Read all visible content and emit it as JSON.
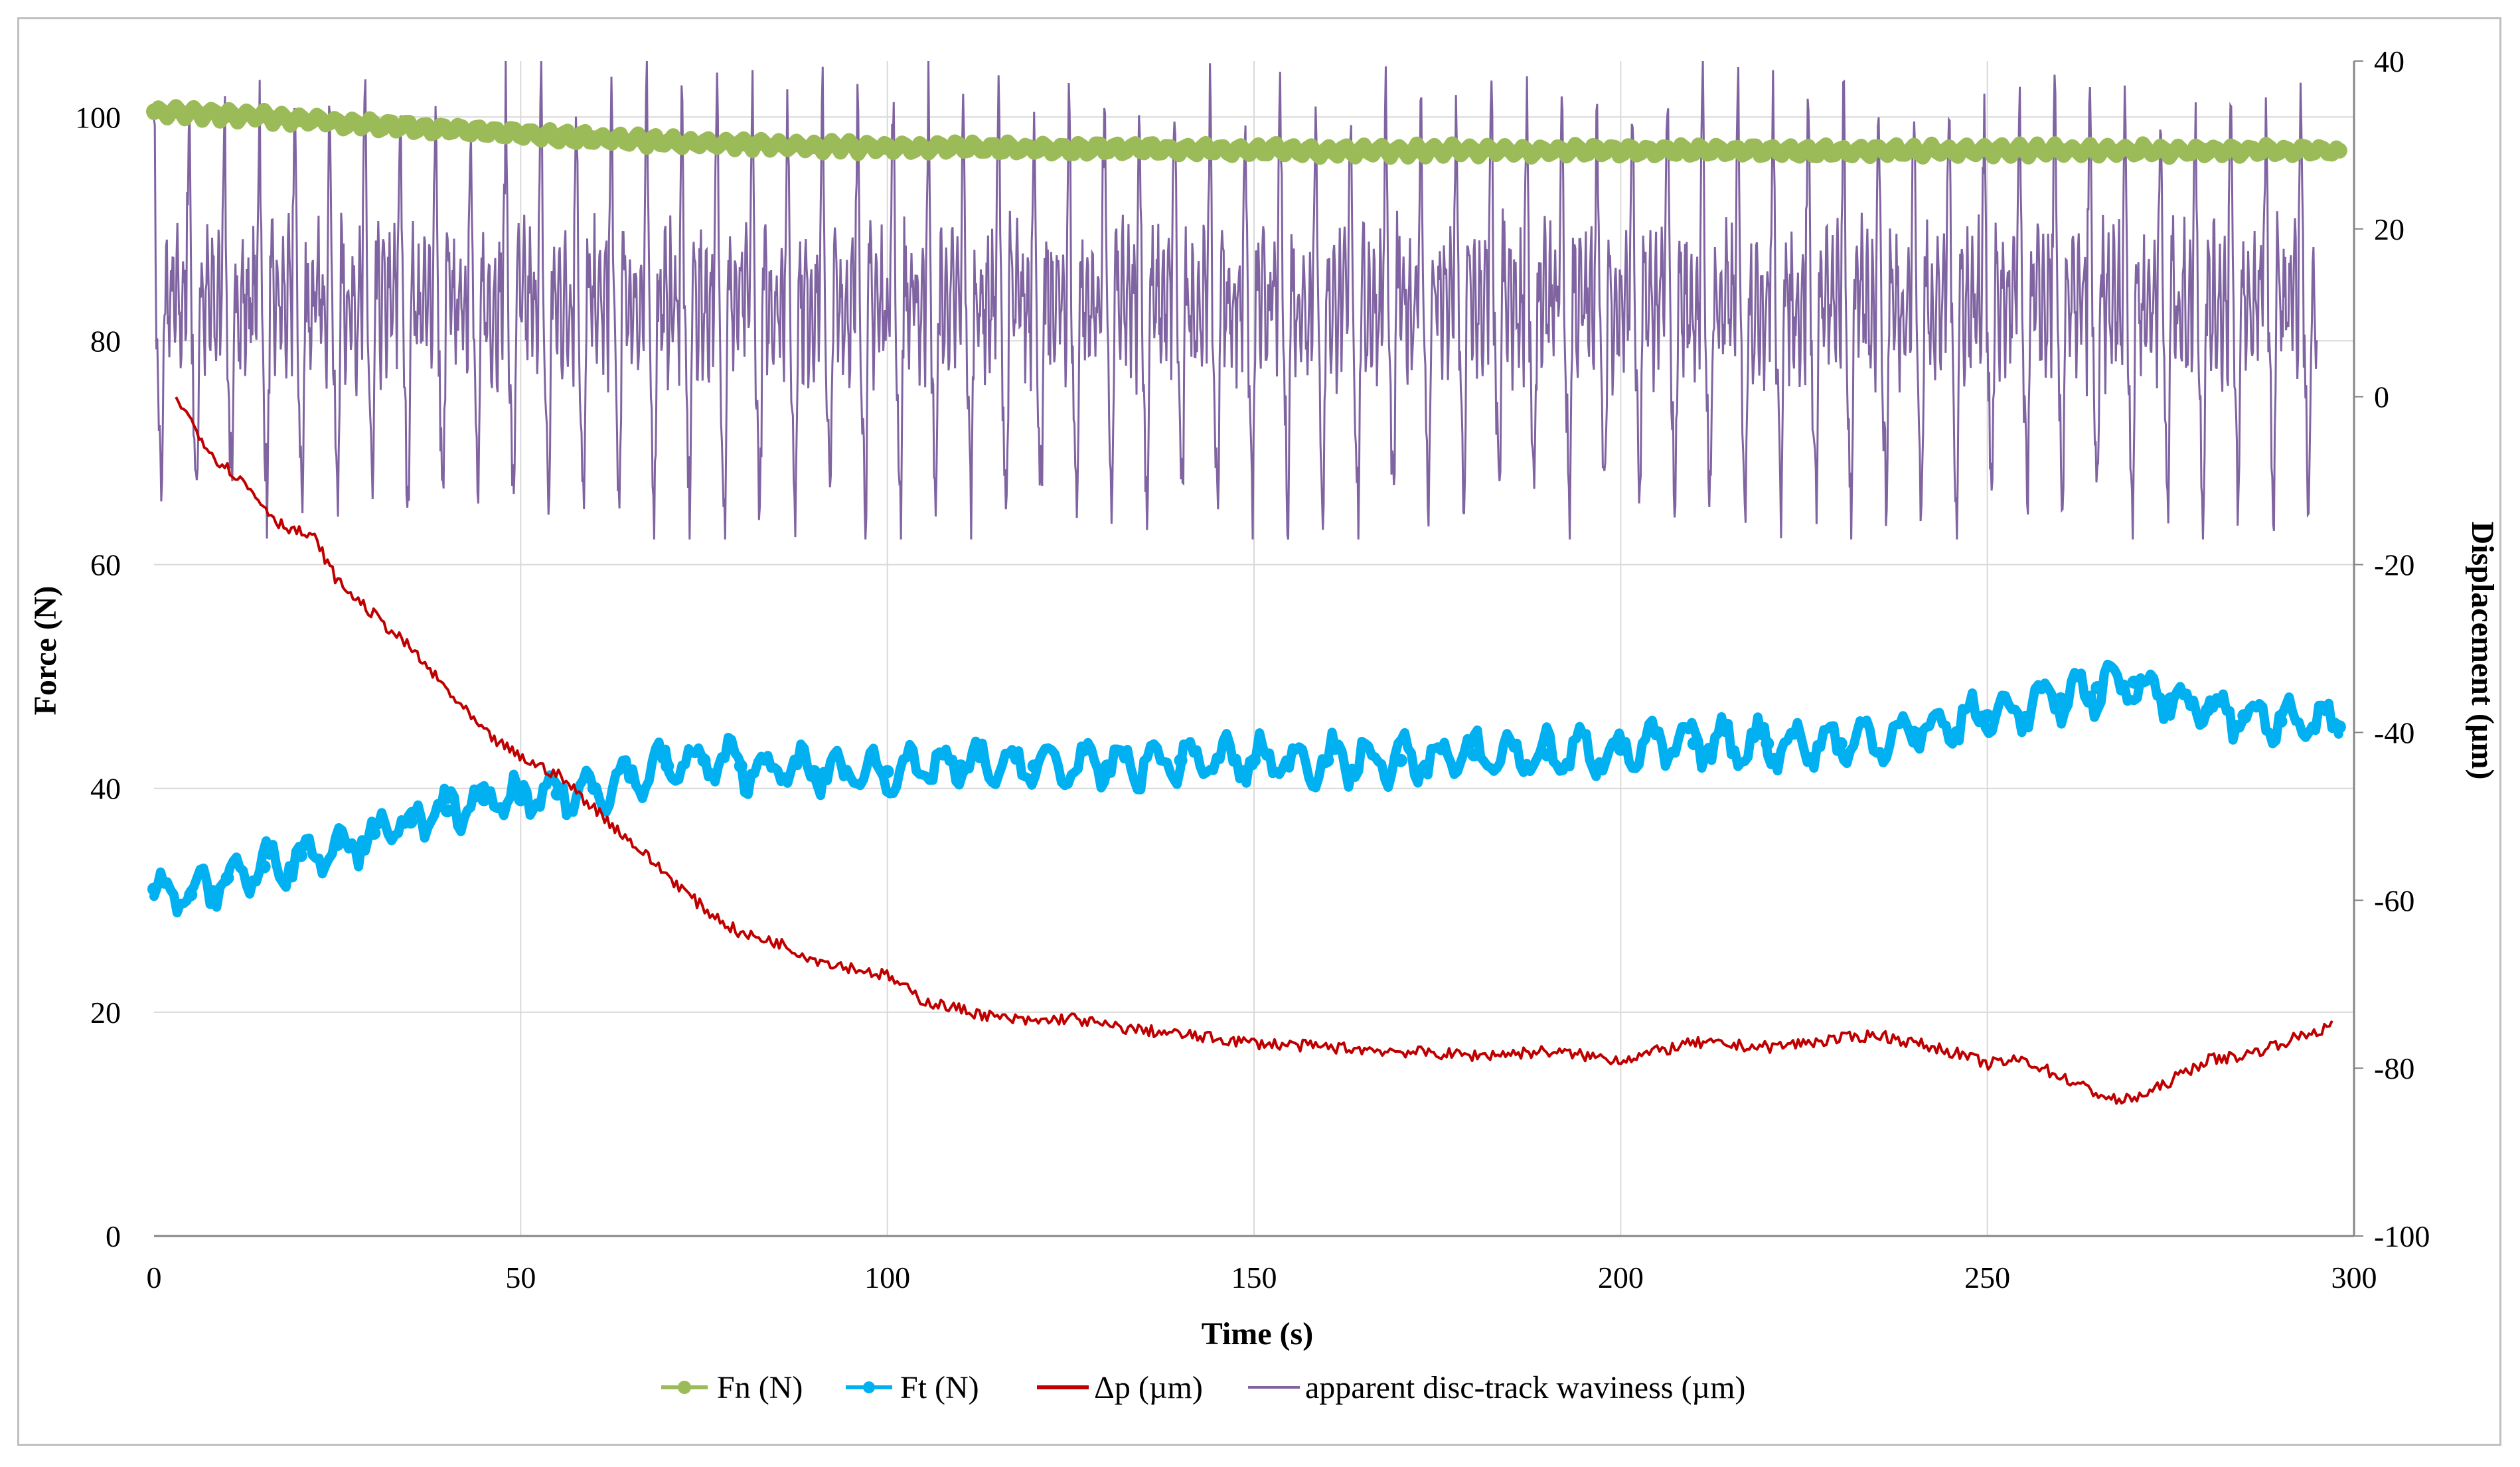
{
  "chart_data": {
    "type": "line",
    "title": "",
    "xlabel": "Time (s)",
    "ylabel": "Force (N)",
    "y2label": "Displacement (µm)",
    "xlim": [
      0,
      300
    ],
    "ylim": [
      0,
      105
    ],
    "y2lim": [
      -100,
      40
    ],
    "x_ticks": [
      "0",
      "50",
      "100",
      "150",
      "200",
      "250",
      "300"
    ],
    "y_ticks": [
      "0",
      "20",
      "40",
      "60",
      "80",
      "100"
    ],
    "y2_ticks": [
      "-100",
      "-80",
      "-60",
      "-40",
      "-20",
      "0",
      "20",
      "40"
    ],
    "grid": true,
    "legend_position": "bottom",
    "series": [
      {
        "name": "Fn (N)",
        "axis": "left",
        "color": "#9bbb59",
        "marker": "circle",
        "x": [
          0,
          10,
          20,
          30,
          40,
          50,
          60,
          70,
          80,
          90,
          100,
          120,
          140,
          160,
          180,
          200,
          220,
          240,
          260,
          280,
          298
        ],
        "values": [
          100.5,
          100.2,
          99.8,
          99.3,
          98.9,
          98.5,
          98.1,
          97.8,
          97.6,
          97.4,
          97.3,
          97.2,
          97.1,
          97.0,
          97.0,
          97.0,
          97.0,
          97.0,
          97.0,
          97.0,
          97.0
        ]
      },
      {
        "name": "Ft (N)",
        "axis": "left",
        "color": "#00b0f0",
        "marker": "circle",
        "x": [
          0,
          5,
          10,
          15,
          20,
          25,
          30,
          35,
          40,
          45,
          50,
          55,
          60,
          65,
          70,
          75,
          80,
          90,
          100,
          110,
          120,
          130,
          140,
          150,
          160,
          170,
          180,
          190,
          200,
          210,
          220,
          230,
          240,
          250,
          260,
          265,
          270,
          275,
          280,
          285,
          290,
          298
        ],
        "values": [
          31,
          30.5,
          32,
          33,
          34,
          35,
          36,
          37,
          38,
          39,
          39,
          39.5,
          40,
          41,
          42,
          42.5,
          42,
          41.5,
          41.5,
          42,
          42,
          42,
          42.5,
          42.5,
          42.5,
          42.5,
          43,
          43,
          43.5,
          44,
          44,
          44,
          45,
          46.5,
          48,
          49,
          49.5,
          48,
          47,
          46.5,
          46,
          45.5
        ]
      },
      {
        "name": "Δp (µm)",
        "axis": "right",
        "color": "#c00000",
        "marker": "none",
        "x": [
          3,
          8,
          12,
          17,
          22,
          25,
          30,
          35,
          40,
          45,
          50,
          55,
          60,
          65,
          70,
          75,
          80,
          85,
          90,
          95,
          100,
          105,
          110,
          115,
          120,
          125,
          130,
          140,
          150,
          160,
          170,
          180,
          190,
          200,
          210,
          220,
          230,
          235,
          240,
          245,
          250,
          255,
          260,
          265,
          268,
          272,
          276,
          280,
          285,
          290,
          297
        ],
        "values": [
          0,
          -7,
          -10,
          -15,
          -17,
          -22,
          -26,
          -30,
          -35,
          -40,
          -43,
          -45,
          -49,
          -53,
          -57,
          -61,
          -64,
          -65,
          -67,
          -68,
          -69,
          -72,
          -73,
          -74,
          -74.5,
          -74,
          -75,
          -76,
          -77,
          -77.5,
          -78,
          -78.5,
          -78,
          -79,
          -77,
          -77.5,
          -76.5,
          -76,
          -77,
          -78,
          -79.5,
          -79,
          -81,
          -83,
          -84,
          -83,
          -81,
          -79,
          -78.5,
          -77,
          -75
        ]
      },
      {
        "name": "apparent disc-track waviness (µm)",
        "axis": "right",
        "color": "#8064a2",
        "marker": "none",
        "period_s": 4.8,
        "peak_um": 38,
        "trough_um": -15,
        "mean_um": 15,
        "x_range": [
          0,
          295
        ]
      }
    ]
  }
}
